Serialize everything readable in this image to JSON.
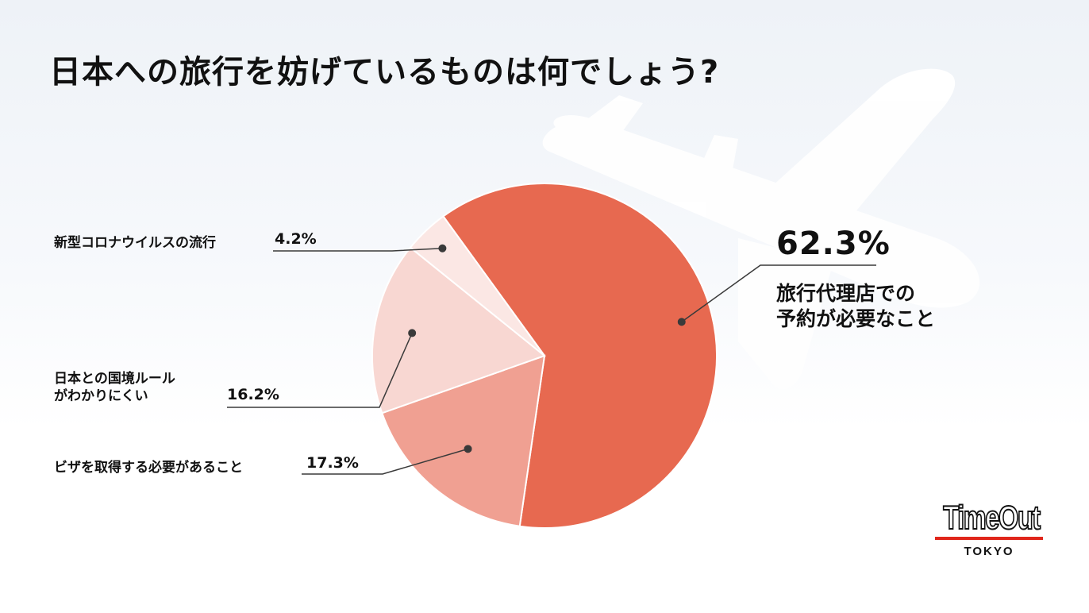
{
  "title": "日本への旅行を妨げているものは何でしょう?",
  "chart_data": {
    "type": "pie",
    "start_angle_deg": -36,
    "direction": "clockwise",
    "slices": [
      {
        "label": "旅行代理店での予約が必要なこと",
        "value": 62.3,
        "value_label": "62.3%",
        "color": "#e76950"
      },
      {
        "label": "ビザを取得する必要があること",
        "value": 17.3,
        "value_label": "17.3%",
        "color": "#f0a092"
      },
      {
        "label": "日本との国境ルールがわかりにくい",
        "value": 16.2,
        "value_label": "16.2%",
        "color": "#f8d7d2"
      },
      {
        "label": "新型コロナウイルスの流行",
        "value": 4.2,
        "value_label": "4.2%",
        "color": "#fbe7e4"
      }
    ]
  },
  "labels": {
    "s0_line1": "旅行代理店での",
    "s0_line2": "予約が必要なこと",
    "s2_line1": "日本との国境ルール",
    "s2_line2": "がわかりにくい"
  },
  "logo": {
    "main": "TimeOut",
    "sub": "TOKYO"
  },
  "colors": {
    "leader": "#3a3a3a",
    "plane": "#ffffff",
    "logo_accent": "#e0261b"
  }
}
